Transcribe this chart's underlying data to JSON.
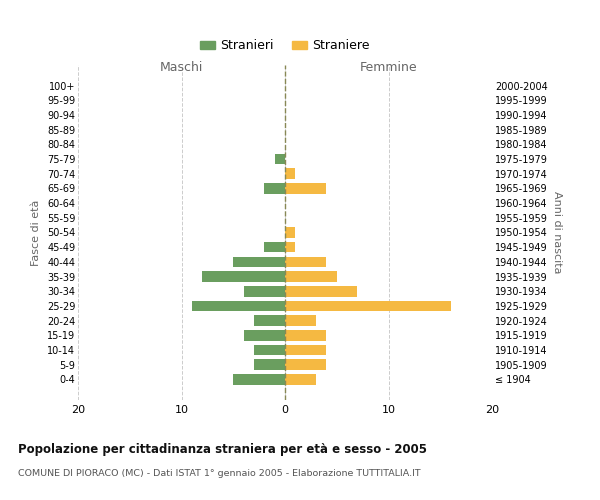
{
  "age_groups": [
    "100+",
    "95-99",
    "90-94",
    "85-89",
    "80-84",
    "75-79",
    "70-74",
    "65-69",
    "60-64",
    "55-59",
    "50-54",
    "45-49",
    "40-44",
    "35-39",
    "30-34",
    "25-29",
    "20-24",
    "15-19",
    "10-14",
    "5-9",
    "0-4"
  ],
  "birth_years": [
    "≤ 1904",
    "1905-1909",
    "1910-1914",
    "1915-1919",
    "1920-1924",
    "1925-1929",
    "1930-1934",
    "1935-1939",
    "1940-1944",
    "1945-1949",
    "1950-1954",
    "1955-1959",
    "1960-1964",
    "1965-1969",
    "1970-1974",
    "1975-1979",
    "1980-1984",
    "1985-1989",
    "1990-1994",
    "1995-1999",
    "2000-2004"
  ],
  "males": [
    0,
    0,
    0,
    0,
    0,
    1,
    0,
    2,
    0,
    0,
    0,
    2,
    5,
    8,
    4,
    9,
    3,
    4,
    3,
    3,
    5
  ],
  "females": [
    0,
    0,
    0,
    0,
    0,
    0,
    1,
    4,
    0,
    0,
    1,
    1,
    4,
    5,
    7,
    16,
    3,
    4,
    4,
    4,
    3
  ],
  "male_color": "#6a9e5f",
  "female_color": "#f5b942",
  "title": "Popolazione per cittadinanza straniera per età e sesso - 2005",
  "subtitle": "COMUNE DI PIORACO (MC) - Dati ISTAT 1° gennaio 2005 - Elaborazione TUTTITALIA.IT",
  "ylabel_left": "Fasce di età",
  "ylabel_right": "Anni di nascita",
  "xlabel_left": "Maschi",
  "xlabel_right": "Femmine",
  "legend_male": "Stranieri",
  "legend_female": "Straniere",
  "xlim": 20,
  "background_color": "#ffffff",
  "grid_color": "#cccccc"
}
